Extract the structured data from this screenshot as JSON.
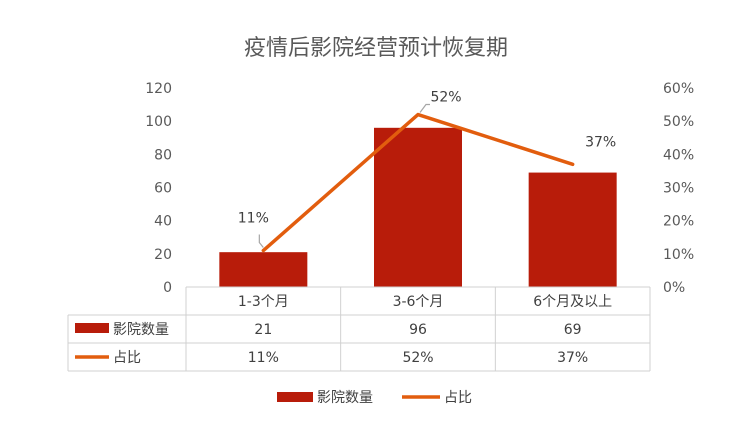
{
  "chart_data": {
    "type": "bar",
    "title": "疫情后影院经营预计恢复期",
    "categories": [
      "1-3个月",
      "3-6个月",
      "6个月及以上"
    ],
    "series": [
      {
        "name": "影院数量",
        "type": "bar",
        "axis": "left",
        "values": [
          21,
          96,
          69
        ],
        "labels": [
          "21",
          "96",
          "69"
        ],
        "color": "#b81c0a"
      },
      {
        "name": "占比",
        "type": "line",
        "axis": "right",
        "values": [
          0.11,
          0.52,
          0.37
        ],
        "labels": [
          "11%",
          "52%",
          "37%"
        ],
        "color": "#e25d0e"
      }
    ],
    "y_left": {
      "ylim": [
        0,
        120
      ],
      "ticks": [
        "0",
        "20",
        "40",
        "60",
        "80",
        "100",
        "120"
      ]
    },
    "y_right": {
      "ylim": [
        0,
        0.6
      ],
      "ticks": [
        "0%",
        "10%",
        "20%",
        "30%",
        "40%",
        "50%",
        "60%"
      ]
    },
    "point_labels": [
      "11%",
      "52%",
      "37%"
    ],
    "legend": {
      "placement": "bottom",
      "items": [
        "影院数量",
        "占比"
      ]
    },
    "data_table": true,
    "grid": false
  }
}
